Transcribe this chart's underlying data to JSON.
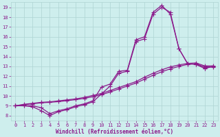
{
  "xlabel": "Windchill (Refroidissement éolien,°C)",
  "xlim": [
    -0.5,
    23.5
  ],
  "ylim": [
    7.5,
    19.5
  ],
  "xticks": [
    0,
    1,
    2,
    3,
    4,
    5,
    6,
    7,
    8,
    9,
    10,
    11,
    12,
    13,
    14,
    15,
    16,
    17,
    18,
    19,
    20,
    21,
    22,
    23
  ],
  "yticks": [
    8,
    9,
    10,
    11,
    12,
    13,
    14,
    15,
    16,
    17,
    18,
    19
  ],
  "bg_color": "#ceeeed",
  "grid_color": "#aed4d2",
  "line_color": "#8b1a8b",
  "line_width": 0.9,
  "marker": "+",
  "marker_size": 4,
  "marker_ew": 0.8,
  "tick_fontsize": 5.0,
  "xlabel_fontsize": 5.5,
  "series": [
    {
      "x": [
        0,
        1,
        2,
        3,
        4,
        5,
        6,
        7,
        8,
        9,
        10,
        11,
        12,
        13,
        14,
        15,
        16,
        17,
        18,
        19,
        20,
        21,
        22,
        23
      ],
      "y": [
        9.0,
        9.0,
        9.0,
        8.8,
        8.2,
        8.5,
        8.7,
        9.0,
        9.2,
        9.5,
        10.9,
        11.2,
        12.5,
        12.6,
        15.7,
        16.0,
        18.5,
        19.2,
        18.3,
        14.8,
        13.3,
        13.2,
        12.8,
        13.0
      ]
    },
    {
      "x": [
        0,
        1,
        2,
        3,
        4,
        5,
        6,
        7,
        8,
        9,
        10,
        11,
        12,
        13,
        14,
        15,
        16,
        17,
        18,
        19,
        20,
        21,
        22,
        23
      ],
      "y": [
        9.0,
        9.0,
        8.9,
        8.5,
        8.0,
        8.4,
        8.6,
        8.9,
        9.1,
        9.4,
        10.2,
        11.0,
        12.3,
        12.5,
        15.5,
        15.8,
        18.3,
        19.0,
        18.5,
        14.8,
        13.3,
        13.2,
        12.8,
        13.0
      ]
    },
    {
      "x": [
        0,
        1,
        2,
        3,
        4,
        5,
        6,
        7,
        8,
        9,
        10,
        11,
        12,
        13,
        14,
        15,
        16,
        17,
        18,
        19,
        20,
        21,
        22,
        23
      ],
      "y": [
        9.0,
        9.15,
        9.25,
        9.35,
        9.4,
        9.5,
        9.6,
        9.7,
        9.85,
        10.05,
        10.25,
        10.55,
        10.85,
        11.15,
        11.45,
        11.9,
        12.3,
        12.65,
        12.95,
        13.15,
        13.3,
        13.35,
        13.05,
        13.05
      ]
    },
    {
      "x": [
        0,
        1,
        2,
        3,
        4,
        5,
        6,
        7,
        8,
        9,
        10,
        11,
        12,
        13,
        14,
        15,
        16,
        17,
        18,
        19,
        20,
        21,
        22,
        23
      ],
      "y": [
        9.0,
        9.1,
        9.2,
        9.3,
        9.35,
        9.42,
        9.52,
        9.62,
        9.75,
        9.92,
        10.12,
        10.4,
        10.7,
        11.0,
        11.3,
        11.7,
        12.1,
        12.45,
        12.75,
        13.0,
        13.2,
        13.25,
        12.95,
        12.95
      ]
    }
  ]
}
